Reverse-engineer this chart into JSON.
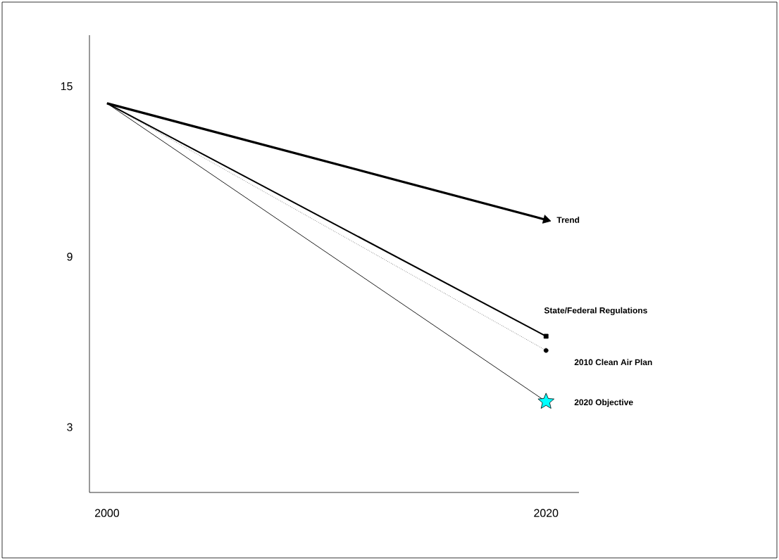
{
  "chart_data": {
    "type": "line",
    "x": [
      2000,
      2020
    ],
    "xlim": [
      1999.2,
      2021.5
    ],
    "xticks": [
      2000,
      2020
    ],
    "ylim": [
      0.7,
      16.8
    ],
    "yticks": [
      3,
      9,
      15
    ],
    "series": [
      {
        "name": "Trend",
        "color": "#000000",
        "values": [
          14.4,
          10.3
        ],
        "line_style": "solid",
        "marker": "triangle"
      },
      {
        "name": "State/Federal Regulations",
        "color": "#000000",
        "values": [
          14.4,
          6.2
        ],
        "line_style": "solid",
        "marker": "square"
      },
      {
        "name": "2010 Clean Air Plan",
        "color": "#000000",
        "values": [
          14.4,
          5.7
        ],
        "line_style": "dotted",
        "marker": "circle"
      },
      {
        "name": "2020 Objective",
        "color": "#000000",
        "colors": [
          null,
          "#00ffff"
        ],
        "values": [
          14.4,
          3.9
        ],
        "line_style": "solid",
        "marker": "star"
      }
    ]
  }
}
